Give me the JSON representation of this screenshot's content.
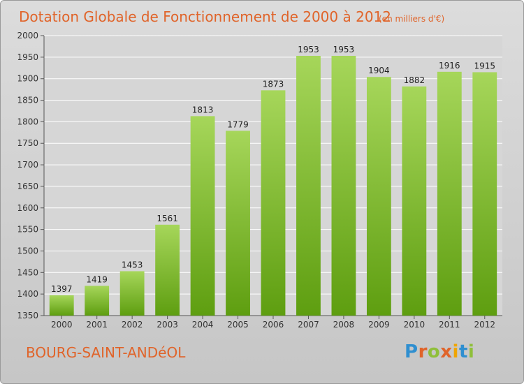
{
  "title": "Dotation Globale de Fonctionnement de 2000 à 2012",
  "unit": "(en milliers d'€)",
  "commune": "BOURG-SAINT-ANDéOL",
  "logo": {
    "text": "Proxiti",
    "letters": [
      "P",
      "r",
      "o",
      "x",
      "i",
      "t",
      "i"
    ],
    "colors": [
      "#2f8fd0",
      "#e0642a",
      "#8fbf3a",
      "#e0642a",
      "#f0a500",
      "#2f8fd0",
      "#8fbf3a"
    ]
  },
  "colors": {
    "title": "#e0642a",
    "bar_top": "#a6d65a",
    "bar_bottom": "#5e9e10",
    "grid": "#ffffff",
    "plot_bg": "#d6d6d6"
  },
  "chart_data": {
    "type": "bar",
    "categories": [
      "2000",
      "2001",
      "2002",
      "2003",
      "2004",
      "2005",
      "2006",
      "2007",
      "2008",
      "2009",
      "2010",
      "2011",
      "2012"
    ],
    "values": [
      1397,
      1419,
      1453,
      1561,
      1813,
      1779,
      1873,
      1953,
      1953,
      1904,
      1882,
      1916,
      1915
    ],
    "ylim": [
      1350,
      2000
    ],
    "yticks": [
      1350,
      1400,
      1450,
      1500,
      1550,
      1600,
      1650,
      1700,
      1750,
      1800,
      1850,
      1900,
      1950,
      2000
    ],
    "grid": true,
    "title": "Dotation Globale de Fonctionnement de 2000 à 2012",
    "ylabel": "",
    "xlabel": ""
  }
}
